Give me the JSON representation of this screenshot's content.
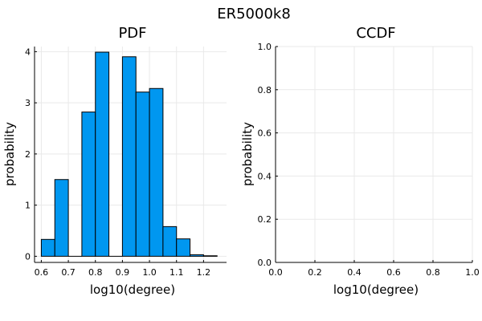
{
  "figure": {
    "title": "ER5000k8"
  },
  "chart_data": [
    {
      "type": "bar",
      "title": "PDF",
      "xlabel": "log10(degree)",
      "ylabel": "probability",
      "xlim": [
        0.575,
        1.285
      ],
      "ylim": [
        -0.12,
        4.1
      ],
      "xticks": [
        0.6,
        0.7,
        0.8,
        0.9,
        1.0,
        1.1,
        1.2
      ],
      "xtick_labels": [
        "0.6",
        "0.7",
        "0.8",
        "0.9",
        "1.0",
        "1.1",
        "1.2"
      ],
      "yticks": [
        0,
        1,
        2,
        3,
        4
      ],
      "ytick_labels": [
        "0",
        "1",
        "2",
        "3",
        "4"
      ],
      "grid": true,
      "bar_color": "#0097f0",
      "bins": [
        {
          "x0": 0.6,
          "x1": 0.65,
          "value": 0.33
        },
        {
          "x0": 0.65,
          "x1": 0.7,
          "value": 1.5
        },
        {
          "x0": 0.7,
          "x1": 0.75,
          "value": 0.0
        },
        {
          "x0": 0.75,
          "x1": 0.8,
          "value": 2.82
        },
        {
          "x0": 0.8,
          "x1": 0.85,
          "value": 3.99
        },
        {
          "x0": 0.85,
          "x1": 0.9,
          "value": 0.0
        },
        {
          "x0": 0.9,
          "x1": 0.95,
          "value": 3.9
        },
        {
          "x0": 0.95,
          "x1": 1.0,
          "value": 3.21
        },
        {
          "x0": 1.0,
          "x1": 1.05,
          "value": 3.28
        },
        {
          "x0": 1.05,
          "x1": 1.1,
          "value": 0.58
        },
        {
          "x0": 1.1,
          "x1": 1.15,
          "value": 0.34
        },
        {
          "x0": 1.15,
          "x1": 1.2,
          "value": 0.03
        },
        {
          "x0": 1.2,
          "x1": 1.25,
          "value": 0.01
        }
      ]
    },
    {
      "type": "line",
      "title": "CCDF",
      "xlabel": "log10(degree)",
      "ylabel": "probability",
      "xlim": [
        0.0,
        1.0
      ],
      "ylim": [
        0.0,
        1.0
      ],
      "xticks": [
        0.0,
        0.2,
        0.4,
        0.6,
        0.8,
        1.0
      ],
      "xtick_labels": [
        "0.0",
        "0.2",
        "0.4",
        "0.6",
        "0.8",
        "1.0"
      ],
      "yticks": [
        0.0,
        0.2,
        0.4,
        0.6,
        0.8,
        1.0
      ],
      "ytick_labels": [
        "0.0",
        "0.2",
        "0.4",
        "0.6",
        "0.8",
        "1.0"
      ],
      "grid": true,
      "series": []
    }
  ]
}
